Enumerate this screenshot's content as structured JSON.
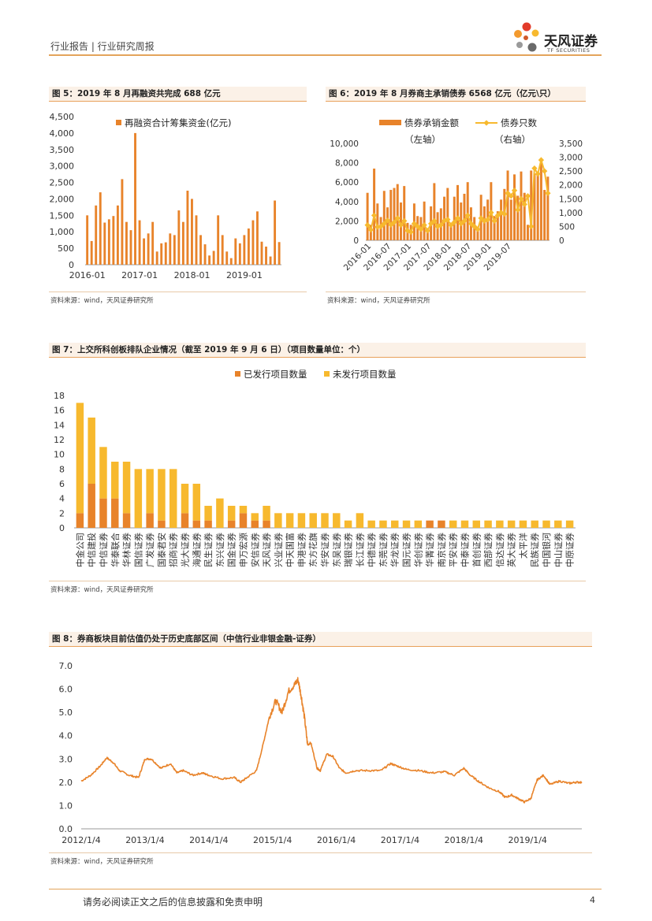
{
  "header": {
    "title": "行业报告 | 行业研究周报",
    "brand": "天风证券",
    "brand_en": "TF SECURITIES",
    "colors": {
      "accent": "#e8832a",
      "yellow": "#f7b92e"
    }
  },
  "figures": [
    {
      "title": "图 5：2019 年 8 月再融资共完成 688 亿元",
      "source": "资料来源：wind，天风证券研究所"
    },
    {
      "title": "图 6：2019 年 8 月券商主承销债券 6568 亿元（亿元\\只）",
      "source": "资料来源：wind，天风证券研究所"
    },
    {
      "title": "图 7：上交所科创板排队企业情况（截至 2019 年 9 月 6 日）（项目数量单位：个）",
      "source": "资料来源：wind，天风证券研究所"
    },
    {
      "title": "图 8：券商板块目前估值仍处于历史底部区间（中信行业非银金融-证券）",
      "source": "资料来源：wind，天风证券研究所"
    }
  ],
  "chart_data": [
    {
      "type": "bar",
      "legend": [
        "再融资合计筹集资金(亿元)"
      ],
      "x_ticks": [
        "2016-01",
        "2017-01",
        "2018-01",
        "2019-01"
      ],
      "ylim": [
        0,
        4500
      ],
      "y_ticks": [
        "4,500",
        "4,000",
        "3,500",
        "3,000",
        "2,500",
        "2,000",
        "1,500",
        "1,000",
        "500",
        "0"
      ],
      "values": [
        1500,
        720,
        1800,
        2200,
        1280,
        1380,
        1480,
        1800,
        2600,
        1300,
        1050,
        4000,
        1350,
        800,
        950,
        1300,
        400,
        650,
        680,
        950,
        900,
        1650,
        1300,
        2250,
        2000,
        1500,
        900,
        620,
        280,
        420,
        1500,
        900,
        400,
        200,
        800,
        650,
        900,
        1100,
        1350,
        1620,
        700,
        550,
        250,
        1950,
        688
      ]
    },
    {
      "type": "bar+line",
      "legend": [
        "债券承销金额",
        "（左轴）",
        "债券只数",
        "（右轴）"
      ],
      "x_ticks": [
        "2016-01",
        "2016-07",
        "2017-01",
        "2017-07",
        "2018-01",
        "2018-07",
        "2019-01",
        "2019-07"
      ],
      "left_ylim": [
        0,
        10000
      ],
      "left_ticks": [
        "10,000",
        "8,000",
        "6,000",
        "4,000",
        "2,000",
        "0"
      ],
      "right_ylim": [
        0,
        3500
      ],
      "right_ticks": [
        "3,500",
        "3,000",
        "2,500",
        "2,000",
        "1,500",
        "1,000",
        "500",
        "0"
      ],
      "series": [
        {
          "name": "债券承销金额",
          "axis": "left",
          "values": [
            4900,
            1600,
            7400,
            3800,
            2400,
            5100,
            3400,
            5200,
            5400,
            5800,
            3900,
            5600,
            1800,
            1600,
            3800,
            2500,
            2400,
            4000,
            1100,
            3500,
            5900,
            2900,
            3300,
            4500,
            5400,
            1700,
            4500,
            5700,
            3900,
            4800,
            6000,
            3400,
            2400,
            1400,
            4700,
            3500,
            4200,
            6000,
            2500,
            3000,
            4200,
            5300,
            7200,
            4200,
            6800,
            4600,
            7100,
            4900,
            1600,
            7200,
            6900,
            6700,
            8400,
            5200,
            6568
          ]
        },
        {
          "name": "债券只数",
          "axis": "right",
          "values": [
            550,
            380,
            900,
            480,
            500,
            600,
            720,
            560,
            650,
            800,
            550,
            700,
            350,
            300,
            600,
            500,
            400,
            550,
            350,
            600,
            700,
            500,
            550,
            700,
            750,
            550,
            650,
            800,
            600,
            700,
            900,
            600,
            500,
            400,
            800,
            700,
            750,
            1000,
            700,
            900,
            1000,
            950,
            1700,
            1600,
            1800,
            1100,
            1500,
            1300,
            1600,
            500,
            2600,
            2400,
            2900,
            2500,
            1700
          ]
        }
      ]
    },
    {
      "type": "stacked-bar",
      "legend": [
        "已发行项目数量",
        "未发行项目数量"
      ],
      "ylim": [
        0,
        18
      ],
      "y_ticks": [
        "18",
        "16",
        "14",
        "12",
        "10",
        "8",
        "6",
        "4",
        "2",
        "0"
      ],
      "categories": [
        "中金公司",
        "中信建投",
        "中信证券",
        "华泰联合",
        "华林证券",
        "国信证券",
        "广发证券",
        "国泰君安",
        "招商证券",
        "光大证券",
        "海通证券",
        "民生证券",
        "东兴证券",
        "国金证券",
        "申万宏源",
        "安信证券",
        "天风证券",
        "兴业证券",
        "中天国富",
        "申港证券",
        "东方花旗",
        "华安证券",
        "东吴证券",
        "瑞银证券",
        "长江证券",
        "中德证券",
        "东莞证券",
        "华龙证券",
        "国元证券",
        "华创证券",
        "华菁证券",
        "南京证券",
        "平安证券",
        "中泰证券",
        "首创证券",
        "西部证券",
        "信达证券",
        "英大证券",
        "太平洋",
        "民族证券",
        "中国银河",
        "中山证券",
        "中原证券"
      ],
      "series": [
        {
          "name": "已发行项目数量",
          "values": [
            2,
            6,
            4,
            4,
            2,
            0,
            2,
            1,
            0,
            2,
            1,
            1,
            0,
            1,
            2,
            1,
            1,
            0,
            0,
            0,
            0,
            0,
            0,
            0,
            0,
            0,
            0,
            0,
            0,
            0,
            1,
            1,
            0,
            0,
            0,
            0,
            0,
            0,
            0,
            0,
            0,
            0,
            0
          ]
        },
        {
          "name": "未发行项目数量",
          "values": [
            15,
            9,
            7,
            5,
            7,
            8,
            6,
            7,
            8,
            4,
            5,
            2,
            4,
            2,
            1,
            1,
            2,
            2,
            2,
            2,
            2,
            2,
            2,
            1,
            2,
            1,
            1,
            1,
            1,
            1,
            0,
            0,
            1,
            1,
            1,
            1,
            1,
            1,
            1,
            1,
            1,
            1,
            1
          ]
        }
      ]
    },
    {
      "type": "line",
      "x_ticks": [
        "2012/1/4",
        "2013/1/4",
        "2014/1/4",
        "2015/1/4",
        "2016/1/4",
        "2017/1/4",
        "2018/1/4",
        "2019/1/4"
      ],
      "ylim": [
        0,
        7
      ],
      "y_ticks": [
        "7.0",
        "6.0",
        "5.0",
        "4.0",
        "3.0",
        "2.0",
        "1.0",
        "0.0"
      ],
      "x_range": [
        2012.0,
        2019.85
      ],
      "series": [
        {
          "name": "PB",
          "points": [
            [
              2012.0,
              2.05
            ],
            [
              2012.15,
              2.3
            ],
            [
              2012.3,
              2.7
            ],
            [
              2012.4,
              3.05
            ],
            [
              2012.5,
              2.85
            ],
            [
              2012.6,
              2.5
            ],
            [
              2012.75,
              2.3
            ],
            [
              2012.9,
              2.2
            ],
            [
              2013.0,
              3.0
            ],
            [
              2013.1,
              3.0
            ],
            [
              2013.25,
              2.6
            ],
            [
              2013.4,
              2.8
            ],
            [
              2013.5,
              2.4
            ],
            [
              2013.6,
              2.5
            ],
            [
              2013.75,
              2.3
            ],
            [
              2013.9,
              2.4
            ],
            [
              2014.0,
              2.3
            ],
            [
              2014.2,
              2.15
            ],
            [
              2014.4,
              2.2
            ],
            [
              2014.5,
              2.0
            ],
            [
              2014.6,
              2.2
            ],
            [
              2014.75,
              2.5
            ],
            [
              2014.85,
              3.6
            ],
            [
              2014.95,
              4.8
            ],
            [
              2015.05,
              5.5
            ],
            [
              2015.15,
              5.0
            ],
            [
              2015.25,
              5.9
            ],
            [
              2015.35,
              6.2
            ],
            [
              2015.4,
              6.4
            ],
            [
              2015.45,
              5.7
            ],
            [
              2015.5,
              4.8
            ],
            [
              2015.55,
              3.6
            ],
            [
              2015.6,
              3.7
            ],
            [
              2015.7,
              2.6
            ],
            [
              2015.75,
              2.5
            ],
            [
              2015.85,
              3.2
            ],
            [
              2015.95,
              3.1
            ],
            [
              2016.05,
              2.6
            ],
            [
              2016.15,
              2.4
            ],
            [
              2016.3,
              2.5
            ],
            [
              2016.5,
              2.5
            ],
            [
              2016.7,
              2.5
            ],
            [
              2016.85,
              2.8
            ],
            [
              2016.95,
              2.7
            ],
            [
              2017.1,
              2.55
            ],
            [
              2017.3,
              2.5
            ],
            [
              2017.5,
              2.4
            ],
            [
              2017.7,
              2.45
            ],
            [
              2017.85,
              2.3
            ],
            [
              2018.0,
              2.6
            ],
            [
              2018.1,
              2.3
            ],
            [
              2018.25,
              2.0
            ],
            [
              2018.4,
              1.75
            ],
            [
              2018.55,
              1.6
            ],
            [
              2018.65,
              1.35
            ],
            [
              2018.75,
              1.45
            ],
            [
              2018.85,
              1.3
            ],
            [
              2018.95,
              1.15
            ],
            [
              2019.05,
              1.3
            ],
            [
              2019.15,
              2.1
            ],
            [
              2019.25,
              2.3
            ],
            [
              2019.35,
              1.9
            ],
            [
              2019.5,
              2.05
            ],
            [
              2019.65,
              1.95
            ],
            [
              2019.75,
              2.0
            ],
            [
              2019.85,
              2.0
            ]
          ]
        }
      ]
    }
  ],
  "footer": {
    "disclaimer": "请务必阅读正文之后的信息披露和免责申明",
    "page": "4"
  }
}
